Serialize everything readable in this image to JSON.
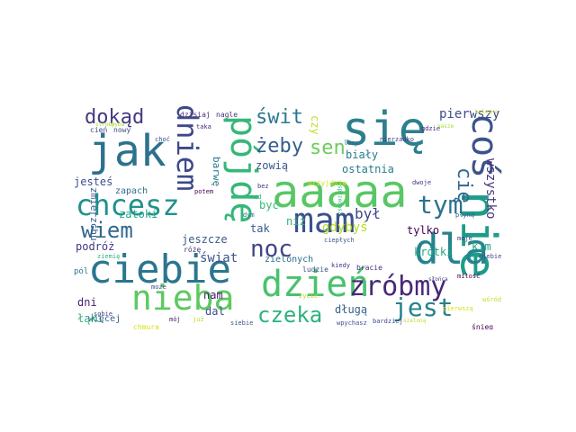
{
  "words": [
    {
      "text": "się",
      "color": "#2d7f8e",
      "rotate": 0
    },
    {
      "text": "nie",
      "color": "#1e9b89",
      "rotate": 90
    },
    {
      "text": "coś",
      "color": "#3b528b",
      "rotate": 90
    },
    {
      "text": "pójdę",
      "color": "#35b779",
      "rotate": 90
    },
    {
      "text": "jak",
      "color": "#2c718e",
      "rotate": 0
    },
    {
      "text": "aaaaa",
      "color": "#58c765",
      "rotate": 0
    },
    {
      "text": "dla",
      "color": "#25838e",
      "rotate": 0
    },
    {
      "text": "ciebie",
      "color": "#2a768e",
      "rotate": 0
    },
    {
      "text": "mam",
      "color": "#3b528b",
      "rotate": 0
    },
    {
      "text": "chcesz",
      "color": "#21918c",
      "rotate": 0
    },
    {
      "text": "dzień",
      "color": "#4ac16d",
      "rotate": 0
    },
    {
      "text": "nieba",
      "color": "#5ec962",
      "rotate": 0
    },
    {
      "text": "zróbmy",
      "color": "#482878",
      "rotate": 0
    },
    {
      "text": "dniem",
      "color": "#3e4989",
      "rotate": 90
    },
    {
      "text": "tym",
      "color": "#2c728e",
      "rotate": 0
    },
    {
      "text": "noc",
      "color": "#404688",
      "rotate": 0
    },
    {
      "text": "czeka",
      "color": "#2db27d",
      "rotate": 0
    },
    {
      "text": "jest",
      "color": "#26828e",
      "rotate": 0
    },
    {
      "text": "wiem",
      "color": "#31688e",
      "rotate": 0
    },
    {
      "text": "dokąd",
      "color": "#443983",
      "rotate": 0
    },
    {
      "text": "świt",
      "color": "#2a788e",
      "rotate": 0
    },
    {
      "text": "żeby",
      "color": "#355f8d",
      "rotate": 0
    },
    {
      "text": "sen",
      "color": "#6ccd5a",
      "rotate": 0
    },
    {
      "text": "cię",
      "color": "#31688e",
      "rotate": 90
    },
    {
      "text": "był",
      "color": "#3f4788",
      "rotate": 0
    },
    {
      "text": "wszystko",
      "color": "#46337f",
      "rotate": 90
    },
    {
      "text": "pierwszy",
      "color": "#3e4c8a",
      "rotate": 0
    },
    {
      "text": "biały",
      "color": "#277f8e",
      "rotate": 0
    },
    {
      "text": "ostatnia",
      "color": "#297b8e",
      "rotate": 0
    },
    {
      "text": "kim",
      "color": "#21a685",
      "rotate": 0
    },
    {
      "text": "krótki",
      "color": "#22a884",
      "rotate": 0
    },
    {
      "text": "tylko",
      "color": "#440154",
      "rotate": 0
    },
    {
      "text": "długą",
      "color": "#33638d",
      "rotate": 0
    },
    {
      "text": "gdybyś",
      "color": "#b8de29",
      "rotate": 0
    },
    {
      "text": "zowią",
      "color": "#3a548c",
      "rotate": 0
    },
    {
      "text": "jesteś",
      "color": "#3c508b",
      "rotate": 0
    },
    {
      "text": "zapach",
      "color": "#2e6e8e",
      "rotate": 0
    },
    {
      "text": "zatoki",
      "color": "#21a685",
      "rotate": 0
    },
    {
      "text": "jeszcze",
      "color": "#38598c",
      "rotate": 0
    },
    {
      "text": "podróż",
      "color": "#453781",
      "rotate": 0
    },
    {
      "text": "świat",
      "color": "#3b528b",
      "rotate": 0
    },
    {
      "text": "tak",
      "color": "#38598c",
      "rotate": 0
    },
    {
      "text": "niż",
      "color": "#2fb47c",
      "rotate": 0
    },
    {
      "text": "być",
      "color": "#3aba76",
      "rotate": 0
    },
    {
      "text": "zielonych",
      "color": "#2e6f8e",
      "rotate": 0
    },
    {
      "text": "dni",
      "color": "#482173",
      "rotate": 0
    },
    {
      "text": "nam",
      "color": "#481b6d",
      "rotate": 0
    },
    {
      "text": "dal",
      "color": "#3d4d8a",
      "rotate": 0
    },
    {
      "text": "łąki",
      "color": "#2fb47c",
      "rotate": 0
    },
    {
      "text": "więcej",
      "color": "#355e8d",
      "rotate": 0
    },
    {
      "text": "zmierzchu",
      "color": "#375b8d",
      "rotate": 90
    },
    {
      "text": "barwę",
      "color": "#2a778e",
      "rotate": 90
    },
    {
      "text": "czy",
      "color": "#bddf26",
      "rotate": 90
    },
    {
      "text": "dzisiaj",
      "color": "#472c7a",
      "rotate": 0
    },
    {
      "text": "nagle",
      "color": "#46327e",
      "rotate": 0
    },
    {
      "text": "cień",
      "color": "#3e4a89",
      "rotate": 0
    },
    {
      "text": "nowy",
      "color": "#3f4889",
      "rotate": 0
    },
    {
      "text": "chyba",
      "color": "#a2da37",
      "rotate": 0
    },
    {
      "text": "choć",
      "color": "#3e4c8a",
      "rotate": 0
    },
    {
      "text": "taka",
      "color": "#46327e",
      "rotate": 0
    },
    {
      "text": "lamp",
      "color": "#2d708e",
      "rotate": 0
    },
    {
      "text": "gdzie",
      "color": "#482576",
      "rotate": 0
    },
    {
      "text": "nierzadko",
      "color": "#443983",
      "rotate": 0
    },
    {
      "text": "nasze",
      "color": "#a5db36",
      "rotate": 0
    },
    {
      "text": "bez",
      "color": "#46327e",
      "rotate": 0
    },
    {
      "text": "przyjdzie",
      "color": "#d8e219",
      "rotate": 0
    },
    {
      "text": "potem",
      "color": "#440154",
      "rotate": 0
    },
    {
      "text": "dwoje",
      "color": "#453581",
      "rotate": 0
    },
    {
      "text": "dym",
      "color": "#2d708e",
      "rotate": 0
    },
    {
      "text": "ludzie",
      "color": "#3b528b",
      "rotate": 0
    },
    {
      "text": "bracie",
      "color": "#472d7b",
      "rotate": 0
    },
    {
      "text": "płyną",
      "color": "#38588c",
      "rotate": 0
    },
    {
      "text": "różę",
      "color": "#46327e",
      "rotate": 0
    },
    {
      "text": "ziemię",
      "color": "#2db27d",
      "rotate": 0
    },
    {
      "text": "ciepłych",
      "color": "#3b528b",
      "rotate": 0
    },
    {
      "text": "moje",
      "color": "#443983",
      "rotate": 0
    },
    {
      "text": "pól",
      "color": "#2a788e",
      "rotate": 0
    },
    {
      "text": "życie",
      "color": "#a8db34",
      "rotate": 0
    },
    {
      "text": "kiedy",
      "color": "#46327e",
      "rotate": 0
    },
    {
      "text": "bardziej",
      "color": "#3e4989",
      "rotate": 0
    },
    {
      "text": "słońca",
      "color": "#453781",
      "rotate": 0
    },
    {
      "text": "sobie",
      "color": "#414487",
      "rotate": 0
    },
    {
      "text": "może",
      "color": "#3e4a89",
      "rotate": 0
    },
    {
      "text": "miłość",
      "color": "#440154",
      "rotate": 0
    },
    {
      "text": "niebie",
      "color": "#3e4c8a",
      "rotate": 0
    },
    {
      "text": "chmura",
      "color": "#d2e21b",
      "rotate": 0
    },
    {
      "text": "mój",
      "color": "#482475",
      "rotate": 0
    },
    {
      "text": "już",
      "color": "#b5de2b",
      "rotate": 0
    },
    {
      "text": "siebie",
      "color": "#38598c",
      "rotate": 0
    },
    {
      "text": "wpychasz",
      "color": "#3b528b",
      "rotate": 0
    },
    {
      "text": "pierwszą",
      "color": "#d5e21a",
      "rotate": 0
    },
    {
      "text": "wśród",
      "color": "#bddf26",
      "rotate": 0
    },
    {
      "text": "śnieg",
      "color": "#440154",
      "rotate": 0
    },
    {
      "text": "szaloną",
      "color": "#bddf26",
      "rotate": 0
    },
    {
      "text": "kolejna",
      "color": "#c2df23",
      "rotate": 0
    },
    {
      "text": "złocistą",
      "color": "#c8e020",
      "rotate": 0
    },
    {
      "text": "strony",
      "color": "#b2dd2d",
      "rotate": 0
    },
    {
      "text": "sprzedasz",
      "color": "#36b677",
      "rotate": 90
    },
    {
      "text": "nad",
      "color": "#2fb47c",
      "rotate": 0
    }
  ]
}
